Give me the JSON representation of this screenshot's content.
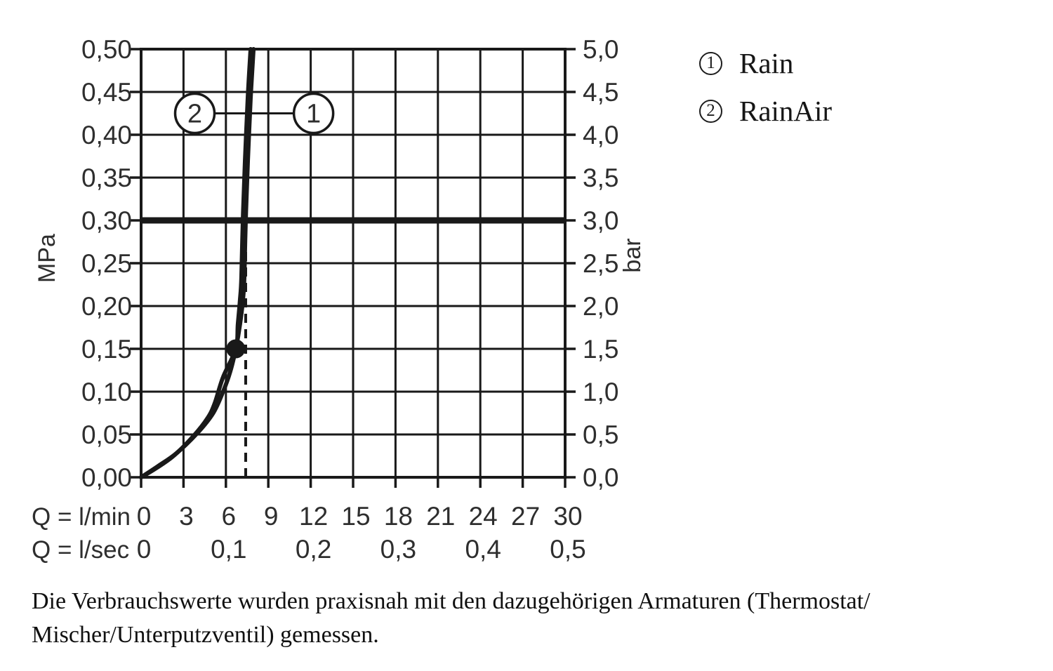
{
  "chart_data": {
    "type": "line",
    "title": "",
    "x_axis": {
      "label_primary": "Q = l/min",
      "label_secondary": "Q = l/sec",
      "min": 0,
      "max": 30,
      "ticks_lmin": [
        "0",
        "3",
        "6",
        "9",
        "12",
        "15",
        "18",
        "21",
        "24",
        "27",
        "30"
      ],
      "ticks_lsec": [
        {
          "label": "0",
          "at_lmin": 0
        },
        {
          "label": "0,1",
          "at_lmin": 6
        },
        {
          "label": "0,2",
          "at_lmin": 12
        },
        {
          "label": "0,3",
          "at_lmin": 18
        },
        {
          "label": "0,4",
          "at_lmin": 24
        },
        {
          "label": "0,5",
          "at_lmin": 30
        }
      ]
    },
    "y_axis_left": {
      "unit": "MPa",
      "min": 0,
      "max": 0.5,
      "ticks": [
        "0,50",
        "0,45",
        "0,40",
        "0,35",
        "0,30",
        "0,25",
        "0,20",
        "0,15",
        "0,10",
        "0,05",
        "0,00"
      ]
    },
    "y_axis_right": {
      "unit": "bar",
      "min": 0,
      "max": 5,
      "ticks": [
        "5,0",
        "4,5",
        "4,0",
        "3,5",
        "3,0",
        "2,5",
        "2,0",
        "1,5",
        "1,0",
        "0,5",
        "0,0"
      ]
    },
    "grid": true,
    "series": [
      {
        "id": "1",
        "name": "Rain",
        "points_lmin_mpa": [
          [
            0,
            0
          ],
          [
            1.2,
            0.013
          ],
          [
            2.5,
            0.028
          ],
          [
            4.0,
            0.052
          ],
          [
            5.1,
            0.075
          ],
          [
            5.8,
            0.1
          ],
          [
            6.3,
            0.123
          ],
          [
            6.7,
            0.15
          ],
          [
            7.0,
            0.179
          ],
          [
            7.2,
            0.207
          ],
          [
            7.3,
            0.233
          ],
          [
            7.4,
            0.3
          ],
          [
            7.55,
            0.369
          ],
          [
            7.75,
            0.443
          ],
          [
            7.95,
            0.5
          ]
        ]
      },
      {
        "id": "2",
        "name": "RainAir",
        "points_lmin_mpa": [
          [
            0,
            0
          ],
          [
            1.1,
            0.011
          ],
          [
            2.3,
            0.025
          ],
          [
            3.7,
            0.048
          ],
          [
            4.7,
            0.069
          ],
          [
            5.2,
            0.086
          ],
          [
            5.8,
            0.117
          ],
          [
            6.7,
            0.15
          ],
          [
            6.85,
            0.179
          ],
          [
            7.0,
            0.207
          ],
          [
            7.1,
            0.233
          ],
          [
            7.2,
            0.3
          ],
          [
            7.35,
            0.369
          ],
          [
            7.55,
            0.443
          ],
          [
            7.75,
            0.5
          ]
        ]
      }
    ],
    "annotations": {
      "pressure_reference_line_mpa": 0.3,
      "dashed_flow_line_lmin": 7.4,
      "marker_point_lmin_mpa": [
        6.7,
        0.15
      ],
      "callouts": [
        {
          "label": "2",
          "lmin": 3.8,
          "mpa": 0.425
        },
        {
          "label": "1",
          "lmin": 12.2,
          "mpa": 0.425
        }
      ]
    },
    "legend_position": "top-right",
    "line_color": "#191919"
  },
  "legend": {
    "items": [
      {
        "symbol": "1",
        "label": "Rain"
      },
      {
        "symbol": "2",
        "label": "RainAir"
      }
    ]
  },
  "caption": {
    "lines": [
      "Die Verbrauchswerte wurden praxisnah mit den dazugehörigen Armaturen (Thermostat/",
      "Mischer/Unterputzventil) gemessen."
    ]
  }
}
